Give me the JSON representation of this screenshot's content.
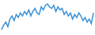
{
  "chart_data": {
    "type": "line",
    "values": [
      10,
      25,
      35,
      20,
      45,
      55,
      40,
      60,
      50,
      65,
      55,
      70,
      60,
      75,
      55,
      70,
      80,
      65,
      60,
      85,
      75,
      90,
      95,
      85,
      80,
      90,
      70,
      85,
      75,
      80,
      60,
      70,
      55,
      65,
      45,
      60,
      50,
      65,
      55,
      40,
      50,
      35,
      45,
      30,
      65
    ],
    "color": "#3a8fd6",
    "ylim": [
      0,
      100
    ],
    "tick_labels": false,
    "grid": false
  }
}
